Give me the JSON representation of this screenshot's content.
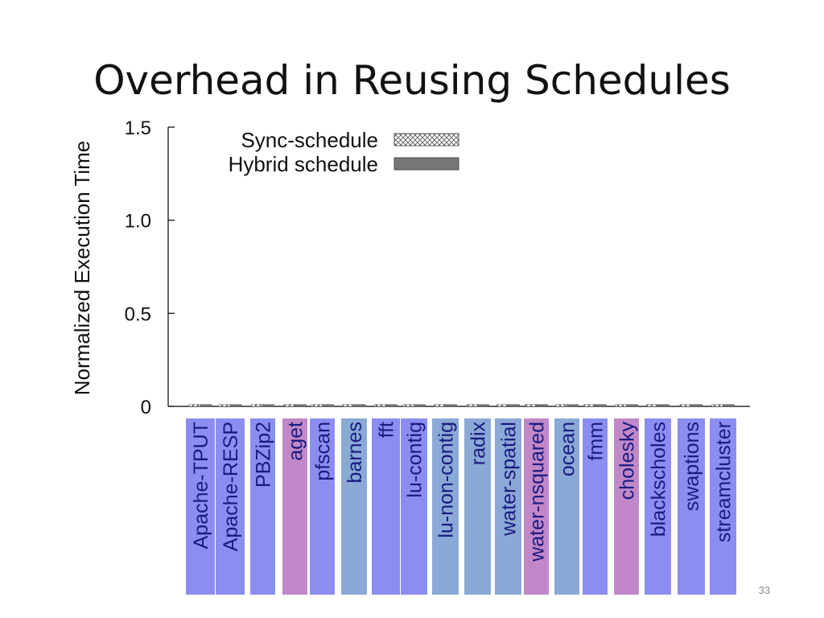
{
  "slide": {
    "title": "Overhead in Reusing Schedules",
    "page_number": "33"
  },
  "colors": {
    "blue": "#8b8ef0",
    "steel": "#8aa9d6",
    "pink": "#c088c8",
    "bar_fill": "#777777",
    "axis": "#000000"
  },
  "chart_data": {
    "type": "bar",
    "title": "",
    "xlabel": "",
    "ylabel": "Normalized Execution Time",
    "ylim": [
      0,
      1.5
    ],
    "yticks": [
      {
        "value": 0,
        "label": "0"
      },
      {
        "value": 0.5,
        "label": "0.5"
      },
      {
        "value": 1.0,
        "label": "1.0"
      },
      {
        "value": 1.5,
        "label": "1.5"
      }
    ],
    "legend_position": "top-left",
    "categories": [
      "Apache-TPUT",
      "Apache-RESP",
      "PBZip2",
      "aget",
      "pfscan",
      "barnes",
      "fft",
      "lu-contig",
      "lu-non-contig",
      "radix",
      "water-spatial",
      "water-nsquared",
      "ocean",
      "fmm",
      "cholesky",
      "blackscholes",
      "swaptions",
      "streamcluster"
    ],
    "category_colors": [
      "blue",
      "blue",
      "blue",
      "pink",
      "blue",
      "steel",
      "blue",
      "blue",
      "steel",
      "steel",
      "steel",
      "pink",
      "steel",
      "blue",
      "pink",
      "blue",
      "blue",
      "blue"
    ],
    "series": [
      {
        "name": "Sync-schedule",
        "pattern": "crosshatch",
        "values": [
          0.01,
          0.01,
          0.01,
          0.01,
          0.01,
          0.01,
          0.01,
          0.01,
          0.01,
          0.01,
          0.01,
          0.01,
          0.01,
          0.01,
          0.01,
          0.01,
          0.01,
          0.01
        ]
      },
      {
        "name": "Hybrid schedule",
        "pattern": "solid-gray",
        "values": [
          0.01,
          0.01,
          0.01,
          0.01,
          0.01,
          0.01,
          0.01,
          0.01,
          0.01,
          0.01,
          0.01,
          0.01,
          0.01,
          0.01,
          0.01,
          0.01,
          0.01,
          0.01
        ]
      }
    ]
  }
}
